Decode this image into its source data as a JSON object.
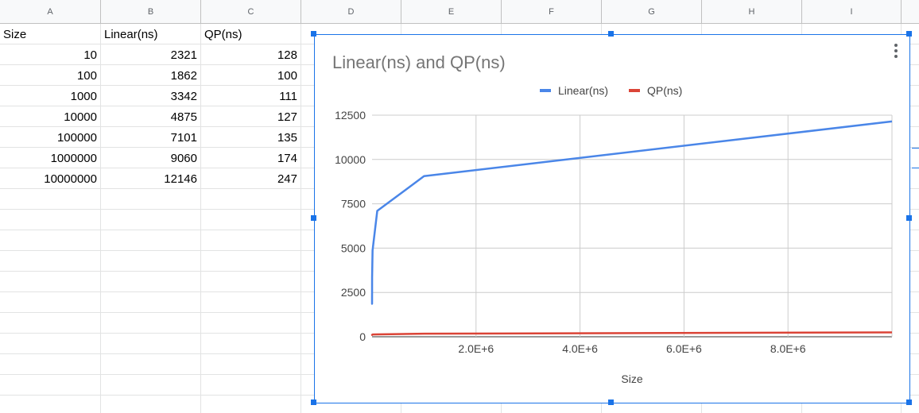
{
  "columns": [
    "A",
    "B",
    "C",
    "D",
    "E",
    "F",
    "G",
    "H",
    "I"
  ],
  "table": {
    "headers": [
      "Size",
      "Linear(ns)",
      "QP(ns)"
    ],
    "rows": [
      [
        "10",
        "2321",
        "128"
      ],
      [
        "100",
        "1862",
        "100"
      ],
      [
        "1000",
        "3342",
        "111"
      ],
      [
        "10000",
        "4875",
        "127"
      ],
      [
        "100000",
        "7101",
        "135"
      ],
      [
        "1000000",
        "9060",
        "174"
      ],
      [
        "10000000",
        "12146",
        "247"
      ]
    ]
  },
  "colors": {
    "linear": "#4a86e8",
    "qp": "#db4437",
    "selection": "#1a73e8"
  },
  "chart_data": {
    "type": "line",
    "title": "Linear(ns) and QP(ns)",
    "xlabel": "Size",
    "ylabel": "",
    "x": [
      10,
      100,
      1000,
      10000,
      100000,
      1000000,
      10000000
    ],
    "series": [
      {
        "name": "Linear(ns)",
        "values": [
          2321,
          1862,
          3342,
          4875,
          7101,
          9060,
          12146
        ]
      },
      {
        "name": "QP(ns)",
        "values": [
          128,
          100,
          111,
          127,
          135,
          174,
          247
        ]
      }
    ],
    "xlim": [
      0,
      10000000
    ],
    "ylim": [
      0,
      12500
    ],
    "yticks": [
      0,
      2500,
      5000,
      7500,
      10000,
      12500
    ],
    "ytick_labels": [
      "0",
      "2500",
      "5000",
      "7500",
      "10000",
      "12500"
    ],
    "xticks": [
      2000000,
      4000000,
      6000000,
      8000000
    ],
    "xtick_labels": [
      "2.0E+6",
      "4.0E+6",
      "6.0E+6",
      "8.0E+6"
    ],
    "legend": "top",
    "grid": true
  }
}
